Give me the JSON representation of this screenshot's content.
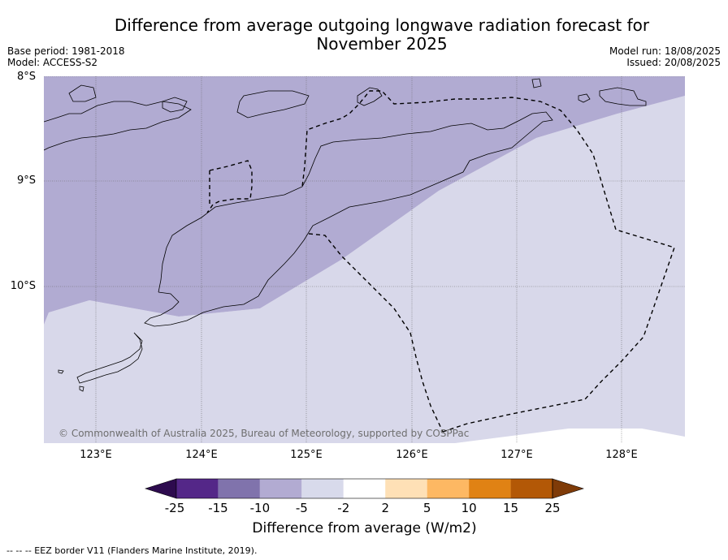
{
  "header": {
    "title_line1": "Difference from average outgoing longwave radiation forecast for",
    "title_line2": "November 2025",
    "base_period": "Base period: 1981-2018",
    "model": "Model: ACCESS-S2",
    "model_run": "Model run: 18/08/2025",
    "issued": "Issued: 20/08/2025"
  },
  "map": {
    "lat_labels": [
      "8°S",
      "9°S",
      "10°S"
    ],
    "lon_labels": [
      "123°E",
      "124°E",
      "125°E",
      "126°E",
      "127°E",
      "128°E"
    ],
    "copyright": "© Commonwealth of Australia 2025, Bureau of Meteorology, supported by COSPPac",
    "fill_colors": {
      "anomaly_neg_5_to_neg_10": "#b1abd2",
      "anomaly_neg_2_to_neg_5": "#d8d8ea",
      "land_outline": "#000000",
      "eez_border": "#000000"
    }
  },
  "colorbar": {
    "ticks": [
      "-25",
      "-15",
      "-10",
      "-5",
      "-2",
      "2",
      "5",
      "10",
      "15",
      "25"
    ],
    "colors": [
      "#2d0b4e",
      "#542788",
      "#8073ac",
      "#b2abd2",
      "#d8daeb",
      "#ffffff",
      "#fee0b6",
      "#fdb863",
      "#e08214",
      "#b35806",
      "#7f3b08"
    ],
    "title": "Difference from average (W/m2)"
  },
  "footer": {
    "legend_note": "--  --  -- EEZ border V11 (Flanders Marine Institute, 2019)."
  }
}
